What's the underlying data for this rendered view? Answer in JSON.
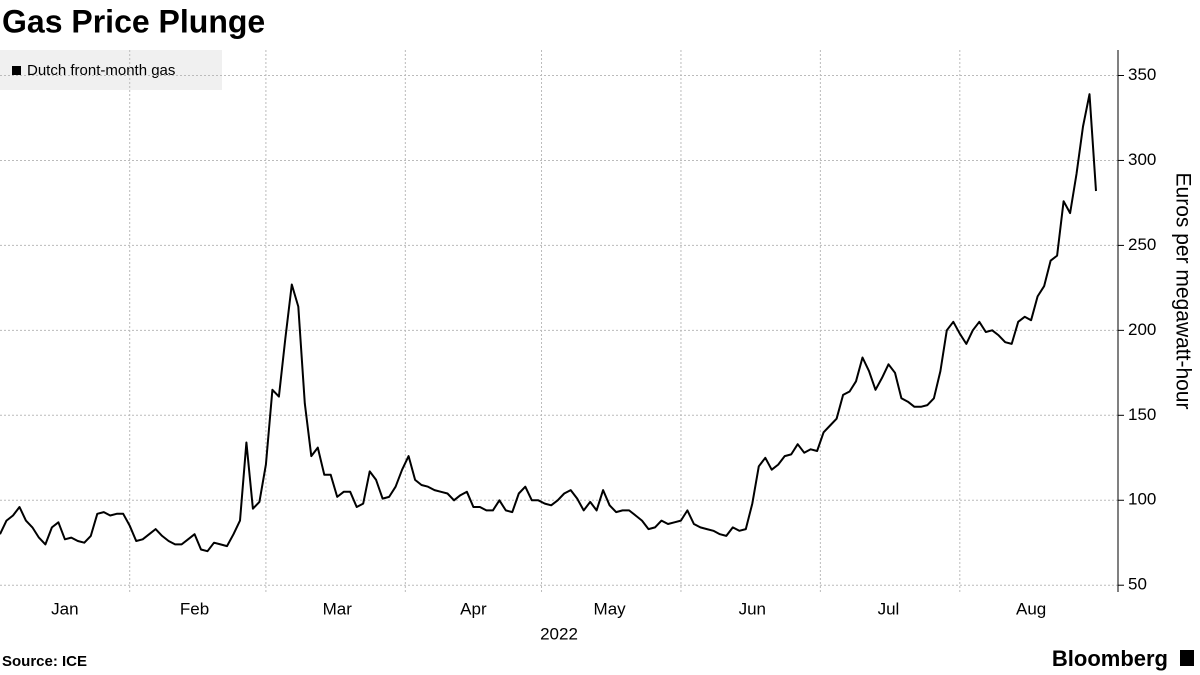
{
  "chart_data": {
    "type": "line",
    "title": "Gas Price Plunge",
    "xlabel": "2022",
    "ylabel": "Euros per megawatt-hour",
    "source": "Source: ICE",
    "brand": "Bloomberg",
    "categories": [
      null,
      null,
      null,
      null,
      null,
      null,
      null,
      null,
      null,
      null,
      "Jan",
      null,
      null,
      null,
      null,
      null,
      null,
      null,
      null,
      null,
      null,
      null,
      null,
      null,
      null,
      null,
      null,
      null,
      null,
      null,
      "Feb",
      null,
      null,
      null,
      null,
      null,
      null,
      null,
      null,
      null,
      null,
      null,
      null,
      null,
      null,
      null,
      null,
      null,
      null,
      null,
      null,
      null,
      "Mar",
      null,
      null,
      null,
      null,
      null,
      null,
      null,
      null,
      null,
      null,
      null,
      null,
      null,
      null,
      null,
      null,
      null,
      null,
      null,
      null,
      "Apr",
      null,
      null,
      null,
      null,
      null,
      null,
      null,
      null,
      null,
      null,
      null,
      null,
      null,
      null,
      null,
      null,
      null,
      null,
      null,
      null,
      "May",
      null,
      null,
      null,
      null,
      null,
      null,
      null,
      null,
      null,
      null,
      null,
      null,
      null,
      null,
      null,
      null,
      null,
      null,
      null,
      null,
      null,
      "Jun",
      null,
      null,
      null,
      null,
      null,
      null,
      null,
      null,
      null,
      null,
      null,
      null,
      null,
      null,
      null,
      null,
      null,
      null,
      null,
      null,
      "Jul",
      null,
      null,
      null,
      null,
      null,
      null,
      null,
      null,
      null,
      null,
      null,
      null,
      null,
      null,
      null,
      null,
      null,
      null,
      null,
      null,
      null,
      "Aug",
      null,
      null,
      null,
      null,
      null,
      null,
      null,
      null,
      null,
      null
    ],
    "series": [
      {
        "name": "Dutch front-month gas",
        "color": "#000000",
        "values": [
          80,
          88,
          91,
          96,
          88,
          84,
          78,
          74,
          84,
          87,
          77,
          78,
          76,
          75,
          79,
          92,
          93,
          91,
          92,
          92,
          85,
          76,
          77,
          80,
          83,
          79,
          76,
          74,
          74,
          77,
          80,
          71,
          70,
          75,
          74,
          73,
          80,
          88,
          134,
          95,
          99,
          121,
          165,
          161,
          195,
          227,
          214,
          157,
          126,
          131,
          115,
          115,
          102,
          105,
          105,
          96,
          98,
          117,
          112,
          101,
          102,
          108,
          118,
          126,
          112,
          109,
          108,
          106,
          105,
          104,
          100,
          103,
          105,
          96,
          96,
          94,
          94,
          100,
          94,
          93,
          104,
          108,
          100,
          100,
          98,
          97,
          100,
          104,
          106,
          101,
          94,
          99,
          94,
          106,
          97,
          93,
          94,
          94,
          91,
          88,
          83,
          84,
          88,
          86,
          87,
          88,
          94,
          86,
          84,
          83,
          82,
          80,
          79,
          84,
          82,
          83,
          98,
          120,
          125,
          118,
          121,
          126,
          127,
          133,
          128,
          130,
          129,
          140,
          144,
          148,
          162,
          164,
          170,
          184,
          176,
          165,
          172,
          180,
          175,
          160,
          158,
          155,
          155,
          156,
          160,
          176,
          200,
          205,
          198,
          192,
          200,
          205,
          199,
          200,
          197,
          193,
          192,
          205,
          208,
          206,
          220,
          226,
          241,
          244,
          276,
          269,
          292,
          320,
          339,
          282
        ]
      }
    ],
    "ylim": [
      46,
      365
    ],
    "yticks": [
      50,
      100,
      150,
      200,
      250,
      300,
      350
    ],
    "grid": true,
    "legend": "upper left"
  }
}
